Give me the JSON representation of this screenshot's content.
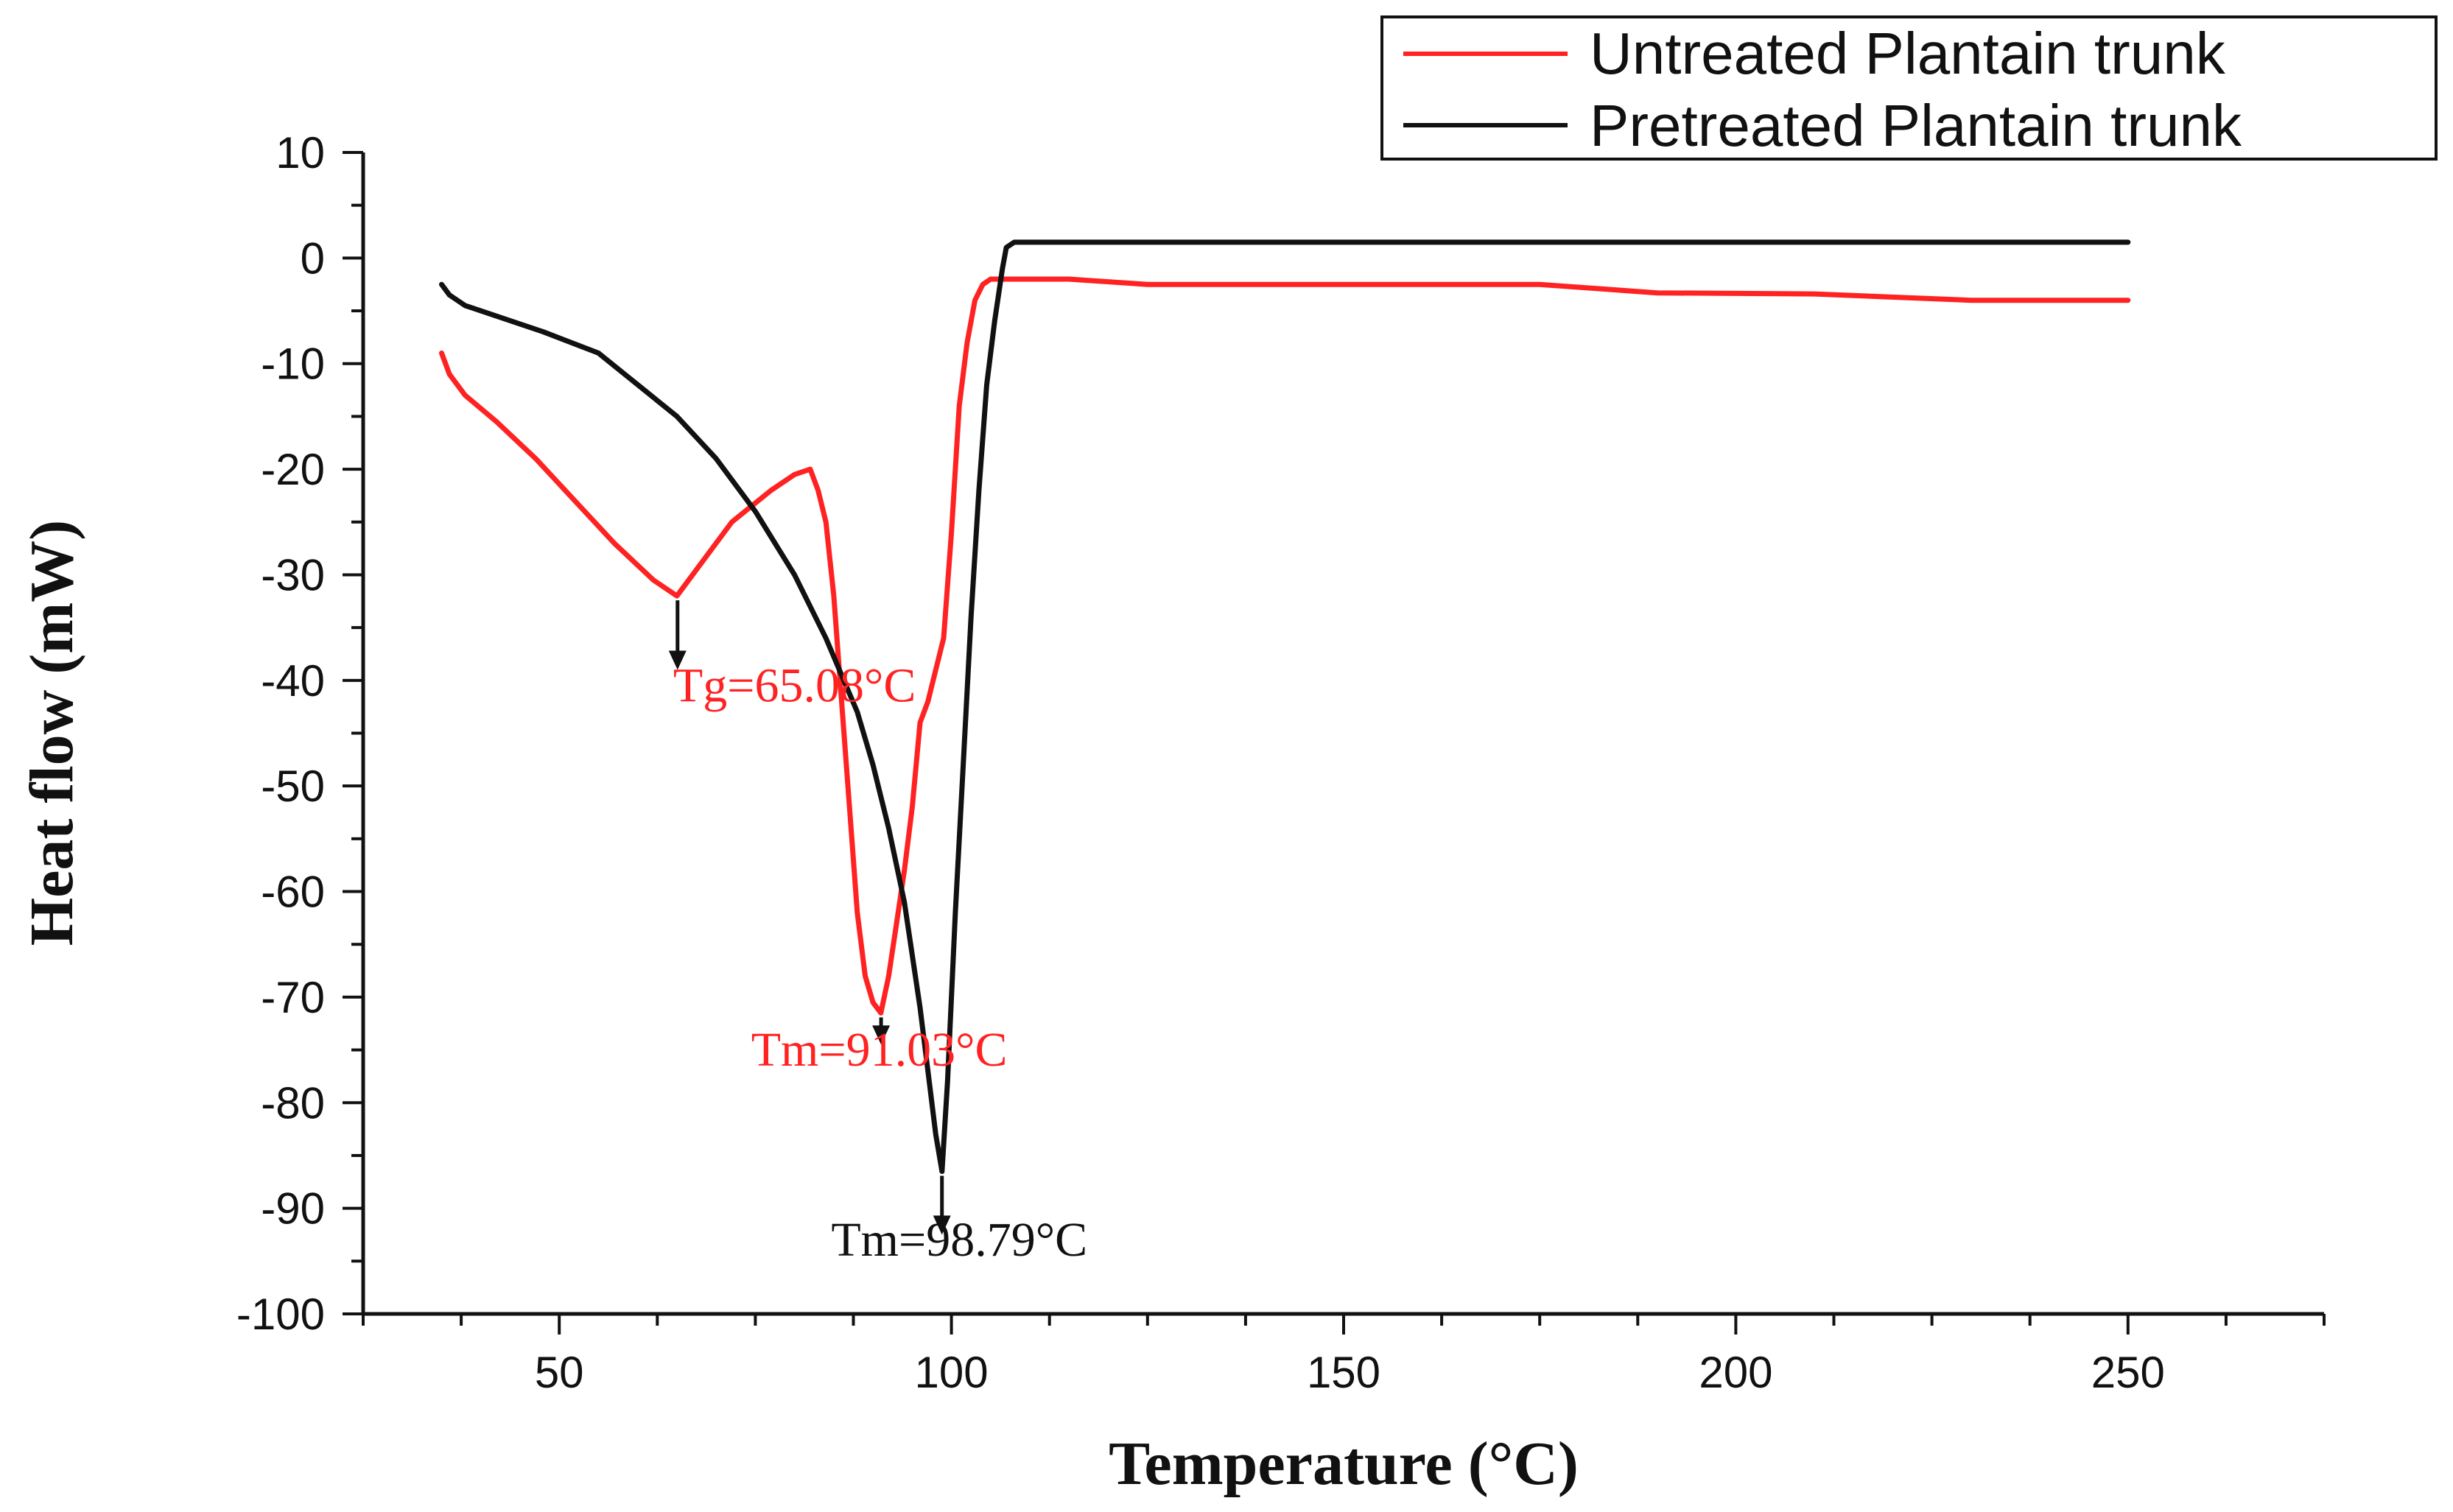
{
  "chart_data": {
    "type": "line",
    "title": "",
    "xlabel": "Temperature (°C)",
    "ylabel": "Heat flow (mW)",
    "xlim": [
      25,
      275
    ],
    "ylim": [
      -100,
      10
    ],
    "xticks": [
      50,
      100,
      150,
      200,
      250
    ],
    "xtick_labels": [
      "50",
      "100",
      "150",
      "200",
      "250"
    ],
    "yticks": [
      10,
      0,
      -10,
      -20,
      -30,
      -40,
      -50,
      -60,
      -70,
      -80,
      -90,
      -100
    ],
    "ytick_labels": [
      "10",
      "0",
      "-10",
      "-20",
      "-30",
      "-40",
      "-50",
      "-60",
      "-70",
      "-80",
      "-90",
      "-100"
    ],
    "grid": false,
    "legend_position": "top-right",
    "series": [
      {
        "name": "Untreated Plantain trunk",
        "color": "#ff2222",
        "x": [
          35,
          36,
          38,
          42,
          47,
          52,
          57,
          62,
          65,
          68,
          72,
          77,
          80,
          82,
          83,
          84,
          85,
          86,
          87,
          88,
          89,
          90,
          91,
          92,
          93,
          94,
          95,
          96,
          97,
          98,
          99,
          100,
          101,
          102,
          103,
          104,
          105,
          108,
          115,
          125,
          140,
          160,
          175,
          190,
          210,
          230,
          250
        ],
        "y": [
          -9,
          -11,
          -13,
          -15.5,
          -19,
          -23,
          -27,
          -30.5,
          -32,
          -29,
          -25,
          -22,
          -20.5,
          -20,
          -22,
          -25,
          -32,
          -42,
          -52,
          -62,
          -68,
          -70.5,
          -71.5,
          -68,
          -63,
          -58,
          -52,
          -44,
          -42,
          -39,
          -36,
          -26,
          -14,
          -8,
          -4,
          -2.5,
          -2,
          -2,
          -2,
          -2.5,
          -2.5,
          -2.5,
          -2.5,
          -3.3,
          -3.4,
          -4,
          -4
        ]
      },
      {
        "name": "Pretreated Plantain trunk",
        "color": "#111111",
        "x": [
          35,
          36,
          38,
          42,
          48,
          55,
          60,
          65,
          70,
          75,
          80,
          84,
          88,
          90,
          92,
          94,
          96,
          97,
          98,
          98.8,
          99.5,
          100.5,
          101.5,
          102.5,
          103.5,
          104.5,
          105.5,
          106.5,
          107,
          108,
          110,
          115,
          130,
          150,
          175,
          200,
          225,
          250
        ],
        "y": [
          -2.5,
          -3.5,
          -4.5,
          -5.5,
          -7,
          -9,
          -12,
          -15,
          -19,
          -24,
          -30,
          -36,
          -43,
          -48,
          -54,
          -61,
          -71,
          -77,
          -83,
          -86.5,
          -78,
          -62,
          -48,
          -34,
          -22,
          -12,
          -6,
          -1,
          1,
          1.5,
          1.5,
          1.5,
          1.5,
          1.5,
          1.5,
          1.5,
          1.5,
          1.5
        ]
      }
    ],
    "annotations": [
      {
        "text": "Tg=65.08°C",
        "series": "Untreated Plantain trunk",
        "x": 65.08,
        "y": -32,
        "arrow_to_y": -39,
        "label_x": 80,
        "label_y": -42,
        "color": "#ff2222"
      },
      {
        "text": "Tm=91.03°C",
        "series": "Untreated Plantain trunk",
        "x": 91.03,
        "y": -71.5,
        "arrow_to_y": -74.5,
        "label_x": 90.8,
        "label_y": -76.5,
        "color": "#ff2222"
      },
      {
        "text": "Tm=98.79°C",
        "series": "Pretreated Plantain trunk",
        "x": 98.79,
        "y": -86.5,
        "arrow_to_y": -92.5,
        "label_x": 101,
        "label_y": -94.5,
        "color": "#111111"
      }
    ]
  }
}
